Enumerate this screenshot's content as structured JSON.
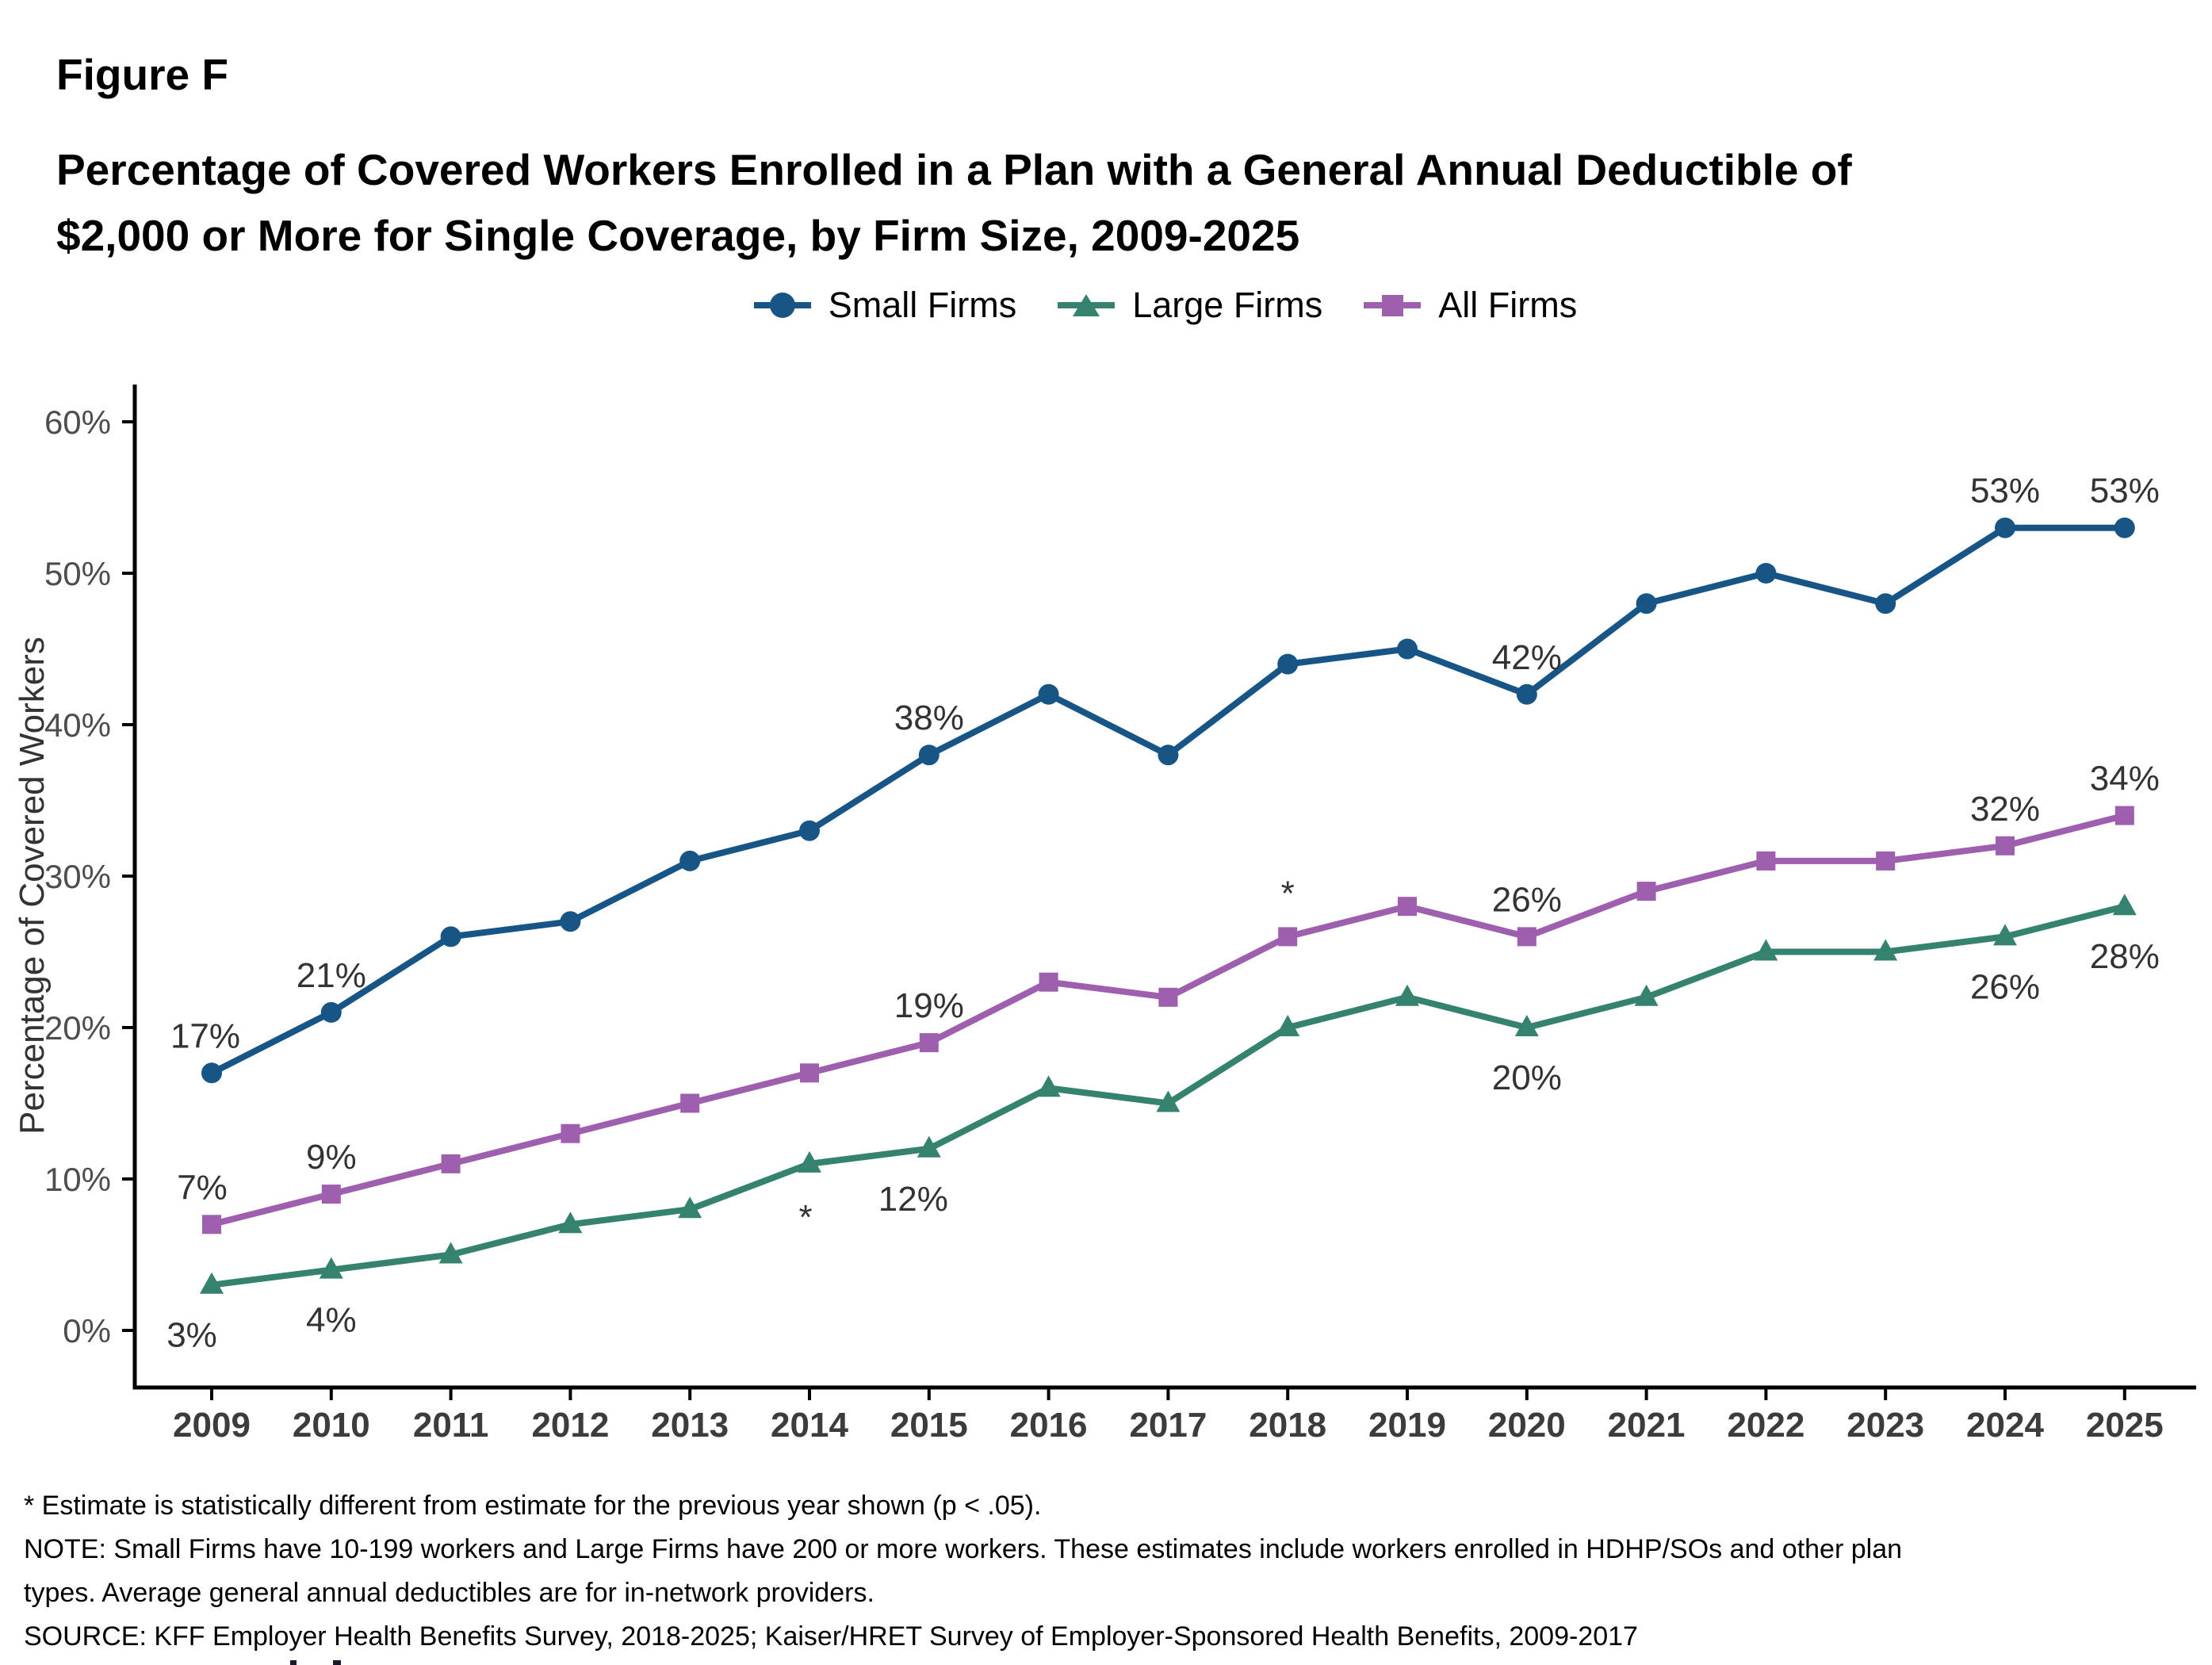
{
  "figure": {
    "label": "Figure F",
    "title_lines": [
      "Percentage of Covered Workers Enrolled in a Plan with a General Annual Deductible of",
      "$2,000 or More for Single Coverage, by Firm Size, 2009-2025"
    ]
  },
  "legend": {
    "items": [
      {
        "label": "Small Firms",
        "marker": "circle"
      },
      {
        "label": "Large Firms",
        "marker": "triangle"
      },
      {
        "label": "All Firms",
        "marker": "square"
      }
    ]
  },
  "chart_data": {
    "type": "line",
    "x": [
      2009,
      2010,
      2011,
      2012,
      2013,
      2014,
      2015,
      2016,
      2017,
      2018,
      2019,
      2020,
      2021,
      2022,
      2023,
      2024,
      2025
    ],
    "ylabel": "Percentage of Covered Workers",
    "ylim": [
      0,
      60
    ],
    "yticks": [
      0,
      10,
      20,
      30,
      40,
      50,
      60
    ],
    "ytick_suffix": "%",
    "grid": false,
    "legend_position": "top",
    "series": [
      {
        "name": "Small Firms",
        "marker": "circle",
        "color": "#185587",
        "values": [
          17,
          21,
          26,
          27,
          31,
          33,
          38,
          42,
          38,
          44,
          45,
          42,
          48,
          50,
          48,
          53,
          53
        ],
        "point_labels": [
          {
            "x": 2009,
            "text": "17%",
            "pos": "above",
            "dx": -8
          },
          {
            "x": 2010,
            "text": "21%",
            "pos": "above"
          },
          {
            "x": 2015,
            "text": "38%",
            "pos": "above"
          },
          {
            "x": 2020,
            "text": "42%",
            "pos": "above"
          },
          {
            "x": 2024,
            "text": "53%",
            "pos": "above"
          },
          {
            "x": 2025,
            "text": "53%",
            "pos": "above"
          }
        ]
      },
      {
        "name": "Large Firms",
        "marker": "triangle",
        "color": "#35826F",
        "values": [
          3,
          4,
          5,
          7,
          8,
          11,
          12,
          16,
          15,
          20,
          22,
          20,
          22,
          25,
          25,
          26,
          28
        ],
        "point_labels": [
          {
            "x": 2009,
            "text": "3%",
            "pos": "below",
            "dx": -25
          },
          {
            "x": 2010,
            "text": "4%",
            "pos": "below"
          },
          {
            "x": 2014,
            "text": "*",
            "pos": "below",
            "dx": -5,
            "dy": 4
          },
          {
            "x": 2015,
            "text": "12%",
            "pos": "below",
            "dx": -20
          },
          {
            "x": 2020,
            "text": "20%",
            "pos": "below"
          },
          {
            "x": 2024,
            "text": "26%",
            "pos": "below"
          },
          {
            "x": 2025,
            "text": "28%",
            "pos": "below"
          }
        ]
      },
      {
        "name": "All Firms",
        "marker": "square",
        "color": "#9D5FAE",
        "values": [
          7,
          9,
          11,
          13,
          15,
          17,
          19,
          23,
          22,
          26,
          28,
          26,
          29,
          31,
          31,
          32,
          34
        ],
        "point_labels": [
          {
            "x": 2009,
            "text": "7%",
            "pos": "above",
            "dx": -12
          },
          {
            "x": 2010,
            "text": "9%",
            "pos": "above"
          },
          {
            "x": 2015,
            "text": "19%",
            "pos": "above"
          },
          {
            "x": 2018,
            "text": "*",
            "pos": "above",
            "dy": -8
          },
          {
            "x": 2020,
            "text": "26%",
            "pos": "above"
          },
          {
            "x": 2024,
            "text": "32%",
            "pos": "above"
          },
          {
            "x": 2025,
            "text": "34%",
            "pos": "above"
          }
        ]
      }
    ]
  },
  "colors": {
    "axis": "#000000",
    "tick_label": "#4D4D4D",
    "year_label": "#3C3C3C",
    "data_label": "#333333"
  },
  "footnotes": [
    "* Estimate is statistically different from estimate for the previous year shown (p < .05).",
    "NOTE: Small Firms have 10-199 workers and Large Firms have 200 or more workers. These estimates include workers enrolled in HDHP/SOs and other plan",
    "types. Average general annual deductibles are for in-network providers.",
    "SOURCE: KFF Employer Health Benefits Survey, 2018-2025; Kaiser/HRET Survey of Employer-Sponsored Health Benefits, 2009-2017"
  ]
}
